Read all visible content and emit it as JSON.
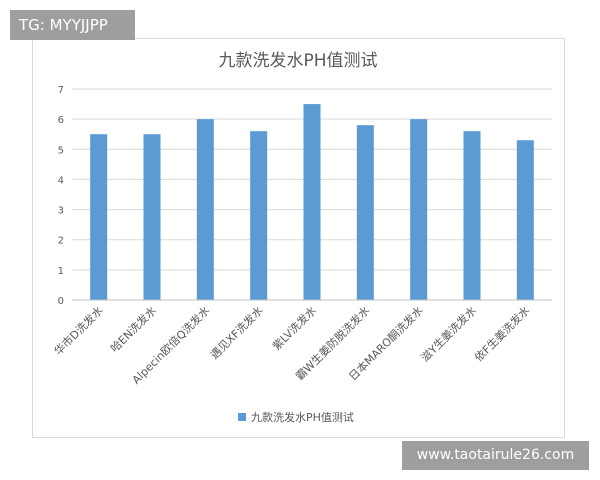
{
  "watermark_top": "TG: MYYJJPP",
  "watermark_bottom": "www.taotairule26.com",
  "chart_data": {
    "type": "bar",
    "title": "九款洗发水PH值测试",
    "categories": [
      "华市D洗发水",
      "哈EN洗发水",
      "Alpecin欧倍Q洗发水",
      "遇见XF洗发水",
      "紫LV洗发水",
      "霸W生姜防脱洗发水",
      "日本MARO酮洗发水",
      "滋Y生姜洗发水",
      "依F生姜洗发水"
    ],
    "series": [
      {
        "name": "九款洗发水PH值测试",
        "values": [
          5.5,
          5.5,
          6.0,
          5.6,
          6.5,
          5.8,
          6.0,
          5.6,
          5.3
        ]
      }
    ],
    "ylim": [
      0,
      7
    ],
    "yticks": [
      0,
      1,
      2,
      3,
      4,
      5,
      6,
      7
    ],
    "grid": true,
    "legend": "bottom",
    "bar_color": "#5b9bd5",
    "grid_color": "#d9d9d9",
    "xlabel": "",
    "ylabel": ""
  }
}
